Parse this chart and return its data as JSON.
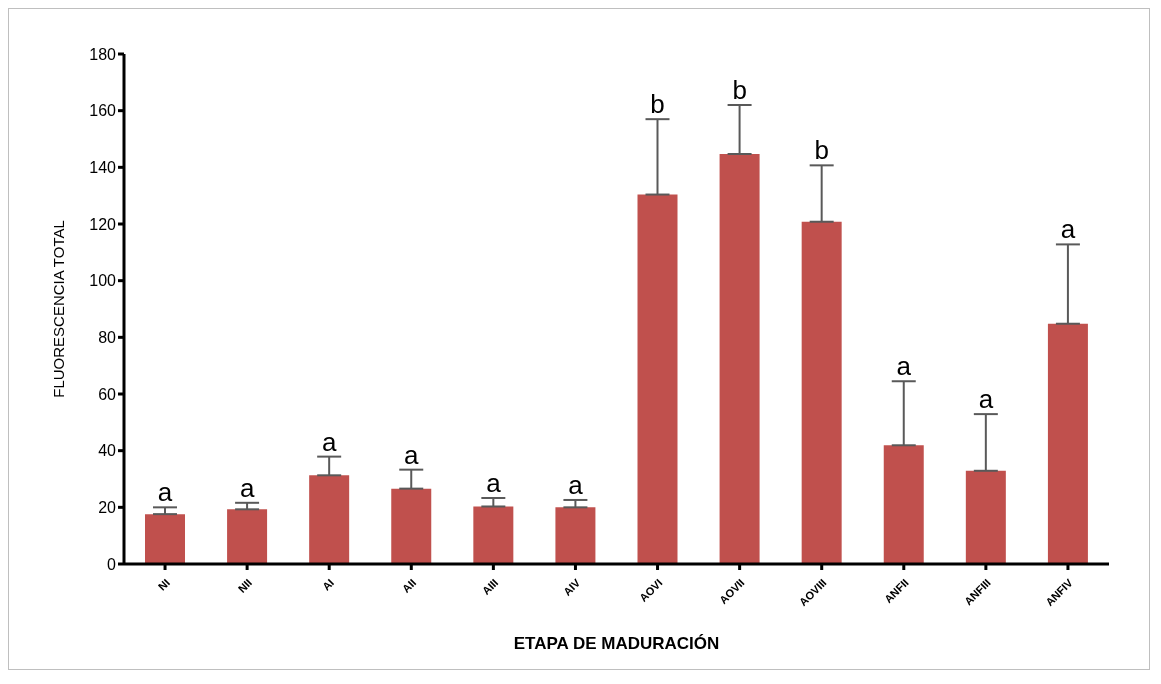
{
  "chart_data": {
    "type": "bar",
    "xlabel": "ETAPA DE MADURACIÓN",
    "ylabel": "FLUORESCENCIA  TOTAL",
    "categories": [
      "NI",
      "NII",
      "AI",
      "AII",
      "AIII",
      "AIV",
      "AOVI",
      "AOVII",
      "AOVIII",
      "ANFII",
      "ANFIII",
      "ANFIV"
    ],
    "values": [
      17.6,
      19.3,
      31.3,
      26.6,
      20.3,
      20,
      130.4,
      144.7,
      120.8,
      41.9,
      32.9,
      84.8
    ],
    "errors": [
      [
        17.6,
        20
      ],
      [
        19.3,
        21.6
      ],
      [
        31.3,
        37.9
      ],
      [
        26.6,
        33.3
      ],
      [
        20.3,
        23.3
      ],
      [
        20,
        22.6
      ],
      [
        130.4,
        157
      ],
      [
        144.7,
        162
      ],
      [
        120.8,
        140.7
      ],
      [
        41.9,
        64.5
      ],
      [
        32.9,
        52.9
      ],
      [
        84.8,
        112.8
      ]
    ],
    "color": "#c0504d",
    "ylim": [
      0,
      180
    ],
    "yticks": [
      0,
      20,
      40,
      60,
      80,
      100,
      120,
      140,
      160,
      180
    ],
    "grid": false,
    "legend": false,
    "annotations": [
      {
        "text": "a",
        "x": "NI",
        "y": 20
      },
      {
        "text": "a",
        "x": "NII",
        "y": 21.6
      },
      {
        "text": "a",
        "x": "AI",
        "y": 37.9
      },
      {
        "text": "a",
        "x": "AII",
        "y": 33.3
      },
      {
        "text": "a",
        "x": "AIII",
        "y": 23.3
      },
      {
        "text": "a",
        "x": "AIV",
        "y": 22.6
      },
      {
        "text": "b",
        "x": "AOVI",
        "y": 157
      },
      {
        "text": "b",
        "x": "AOVII",
        "y": 162
      },
      {
        "text": "b",
        "x": "AOVIII",
        "y": 140.7
      },
      {
        "text": "a",
        "x": "ANFII",
        "y": 64.5
      },
      {
        "text": "a",
        "x": "ANFIII",
        "y": 52.9
      },
      {
        "text": "a",
        "x": "ANFIV",
        "y": 112.8
      }
    ]
  }
}
